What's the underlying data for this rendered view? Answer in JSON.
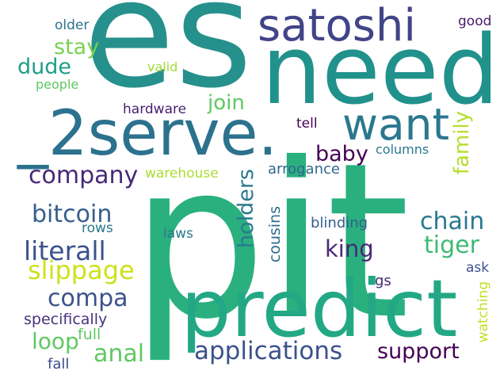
{
  "colors": {
    "background": "#ffffff",
    "palette": [
      "#440154",
      "#3b528b",
      "#21918c",
      "#5ec962",
      "#fde725"
    ]
  },
  "words": {
    "es": "es",
    "pit": "pit",
    "need": "need",
    "serve": "_2serve.",
    "predict": "predict",
    "satoshi": "satoshi",
    "want": "want",
    "applications": "applications",
    "company": "company",
    "bitcoin": "bitcoin",
    "literall": "literall",
    "slippage": "slippage",
    "compa": "compa",
    "loop": "loop",
    "anal": "anal",
    "support": "support",
    "chain": "chain",
    "tiger": "tiger",
    "king": "king",
    "baby": "baby",
    "join": "join",
    "stay": "stay",
    "dude": "dude",
    "holders": "holders",
    "family": "family",
    "cousins": "cousins",
    "watching": "watching",
    "specifically": "specifically",
    "full": "full",
    "fall": "fall",
    "rows": "rows",
    "laws": "laws",
    "blinding": "blinding",
    "ask": "ask",
    "gs": "gs",
    "arrogance": "arrogance",
    "warehouse": "warehouse",
    "columns": "columns",
    "tell": "tell",
    "hardware": "hardware",
    "people": "people",
    "valid": "valid",
    "older": "older",
    "good": "good"
  }
}
